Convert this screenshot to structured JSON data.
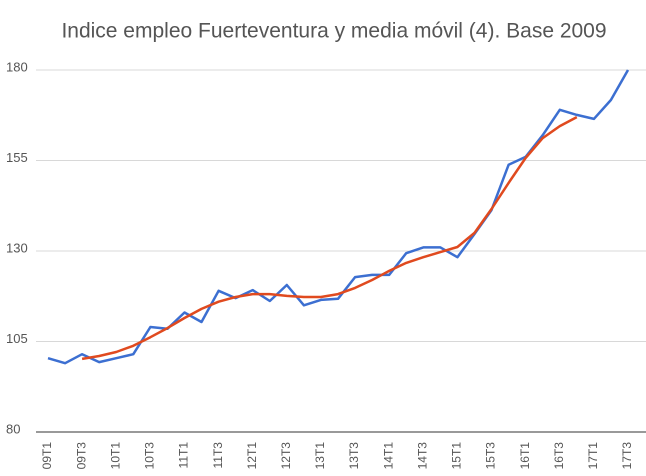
{
  "chart_data": {
    "type": "line",
    "title": "Indice empleo Fuerteventura y media móvil (4). Base 2009",
    "categories": [
      "09T1",
      null,
      "09T3",
      null,
      "10T1",
      null,
      "10T3",
      null,
      "11T1",
      null,
      "11T3",
      null,
      "12T1",
      null,
      "12T3",
      null,
      "13T1",
      null,
      "13T3",
      null,
      "14T1",
      null,
      "14T3",
      null,
      "15T1",
      null,
      "15T3",
      null,
      "16T1",
      null,
      "16T3",
      null,
      "17T1",
      null,
      "17T3"
    ],
    "series": [
      {
        "color": "#3c6fd1",
        "values": [
          100.4,
          99,
          101.5,
          99.3,
          100.4,
          101.5,
          109,
          108.5,
          113,
          110.4,
          119,
          117,
          119.2,
          116.2,
          120.6,
          115,
          116.5,
          116.8,
          122.8,
          123.4,
          123.4,
          129.4,
          131,
          131,
          128.3,
          134.7,
          141.3,
          153.8,
          156,
          162,
          169,
          167.6,
          166.5,
          171.7,
          180
        ]
      },
      {
        "color": "#e04a1f",
        "values": [
          null,
          null,
          100.2,
          101,
          102.1,
          103.8,
          106.2,
          108.7,
          111.5,
          114,
          116,
          117.3,
          118.1,
          118.1,
          117.6,
          117.3,
          117.3,
          118.1,
          119.8,
          122,
          124.5,
          126.7,
          128.3,
          129.7,
          131.1,
          135,
          141.6,
          148.8,
          155.7,
          161.2,
          164.5,
          167,
          null,
          null,
          null
        ]
      }
    ],
    "ylim": [
      80,
      180
    ],
    "yticks": [
      80,
      105,
      130,
      155,
      180
    ],
    "grid": true
  }
}
